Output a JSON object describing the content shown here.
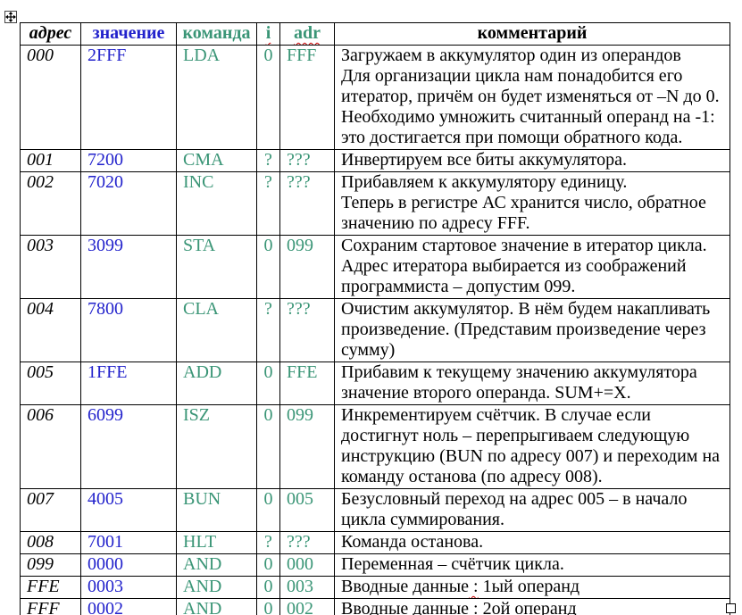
{
  "colors": {
    "value_blue": "#2222cc",
    "command_green": "#3a9576",
    "squiggle_red": "#cc0000",
    "border_black": "#000000",
    "page_background": "#ffffff"
  },
  "icons": {
    "table_move_handle": "move-cross-icon",
    "table_resize_handle": "resize-square-icon"
  },
  "table": {
    "columns": [
      {
        "key": "addr",
        "label": "адрес",
        "squiggle": false
      },
      {
        "key": "value",
        "label": "значение",
        "squiggle": false
      },
      {
        "key": "cmd",
        "label": "команда",
        "squiggle": false
      },
      {
        "key": "i",
        "label": "i",
        "squiggle": true
      },
      {
        "key": "adr",
        "label": "adr",
        "squiggle": true
      },
      {
        "key": "comment",
        "label": "комментарий",
        "squiggle": false
      }
    ],
    "rows": [
      {
        "addr": "000",
        "value": "2FFF",
        "cmd": "LDA",
        "i": "0",
        "adr": "FFF",
        "comment": [
          [
            "Загружаем в аккумулятор один из операндов"
          ],
          [
            "Для организации цикла нам понадобится его итератор, причём он будет изменяться от –N до 0. Необходимо умножить считанный операнд на -1: это достигается при помощи обратного кода."
          ]
        ]
      },
      {
        "addr": "001",
        "value": "7200",
        "cmd": "CMA",
        "i": "?",
        "adr": "???",
        "comment": [
          [
            "Инвертируем все биты аккумулятора."
          ]
        ]
      },
      {
        "addr": "002",
        "value": "7020",
        "cmd": "INC",
        "i": "?",
        "adr": "???",
        "comment": [
          [
            "Прибавляем к аккумулятору единицу."
          ],
          [
            "Теперь в регистре АС хранится число, обратное значению по адресу FFF."
          ]
        ]
      },
      {
        "addr": "003",
        "value": "3099",
        "cmd": "STA",
        "i": "0",
        "adr": "099",
        "comment": [
          [
            "Сохраним стартовое значение в итератор цикла."
          ],
          [
            "Адрес итератора выбирается из соображений программиста – допустим 099."
          ]
        ]
      },
      {
        "addr": "004",
        "value": "7800",
        "cmd": "CLA",
        "i": "?",
        "adr": "???",
        "comment": [
          [
            "Очистим аккумулятор. В нём будем накапливать произведение. (Представим произведение через сумму)"
          ]
        ]
      },
      {
        "addr": "005",
        "value": "1FFE",
        "cmd": "ADD",
        "i": "0",
        "adr": "FFE",
        "comment": [
          [
            "Прибавим к текущему значению аккумулятора значение второго операнда. SUM+=X."
          ]
        ]
      },
      {
        "addr": "006",
        "value": "6099",
        "cmd": "ISZ",
        "i": "0",
        "adr": "099",
        "comment": [
          [
            "Инкрементируем счётчик. В случае если достигнут ноль – перепрыгиваем следующую инструкцию (BUN по адресу 007) и переходим на команду останова (по адресу 008)."
          ]
        ]
      },
      {
        "addr": "007",
        "value": "4005",
        "cmd": "BUN",
        "i": "0",
        "adr": "005",
        "comment": [
          [
            "Безусловный переход на адрес 005 – в начало цикла суммирования."
          ]
        ]
      },
      {
        "addr": "008",
        "value": "7001",
        "cmd": "HLT",
        "i": "?",
        "adr": "???",
        "comment": [
          [
            "Команда останова."
          ]
        ]
      },
      {
        "addr": "099",
        "value": "0000",
        "cmd": "AND",
        "i": "0",
        "adr": "000",
        "comment": [
          [
            "Переменная – счётчик цикла."
          ]
        ]
      },
      {
        "addr": "FFE",
        "value": "0003",
        "cmd": "AND",
        "i": "0",
        "adr": "003",
        "comment": [
          [
            "Вводные данные",
            {
              "t": " :",
              "wavy": true
            },
            " 1ый операнд"
          ]
        ]
      },
      {
        "addr": "FFF",
        "value": "0002",
        "cmd": "AND",
        "i": "0",
        "adr": "002",
        "comment": [
          [
            "Вводные данные",
            {
              "t": " :",
              "wavy": true
            },
            " 2ой операнд"
          ]
        ]
      }
    ]
  }
}
